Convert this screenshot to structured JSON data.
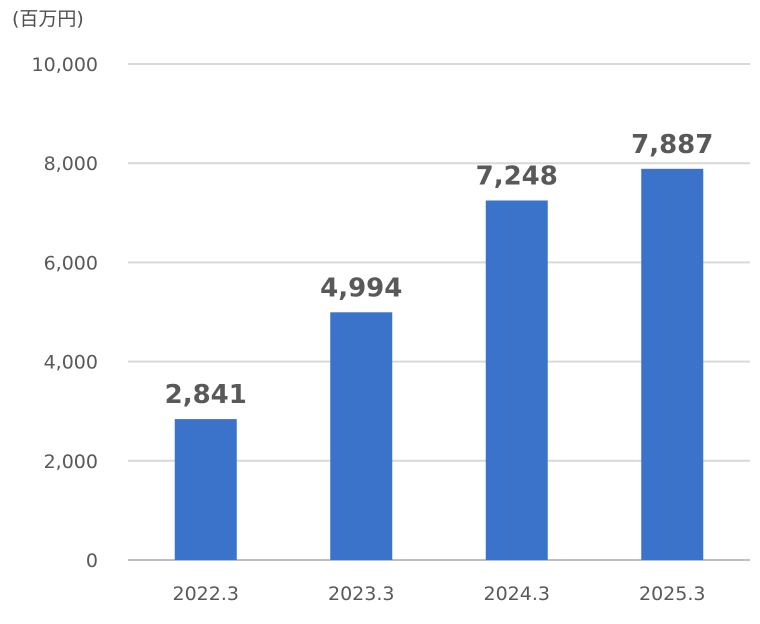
{
  "chart_data": {
    "type": "bar",
    "unit": "(百万円)",
    "categories": [
      "2022.3",
      "2023.3",
      "2024.3",
      "2025.3"
    ],
    "values": [
      2841,
      4994,
      7248,
      7887
    ],
    "value_labels": [
      "2,841",
      "4,994",
      "7,248",
      "7,887"
    ],
    "y_ticks": [
      0,
      2000,
      4000,
      6000,
      8000,
      10000
    ],
    "y_tick_labels": [
      "0",
      "2,000",
      "4,000",
      "6,000",
      "8,000",
      "10,000"
    ],
    "ylim": [
      0,
      10000
    ],
    "grid": true,
    "legend": "none",
    "bar_color": "#3a73c9"
  }
}
